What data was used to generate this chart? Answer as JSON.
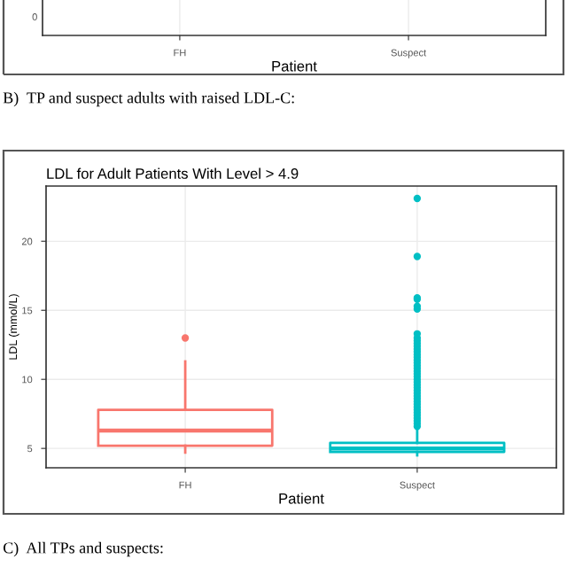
{
  "chart_data": [
    {
      "type": "other",
      "categories": [
        "FH",
        "Suspect"
      ],
      "xlabel": "Patient",
      "annotations": [
        "0",
        "B)  TP and suspect adults with raised LDL-C:"
      ]
    },
    {
      "type": "box",
      "title": "LDL for Adult Patients With Level > 4.9",
      "xlabel": "Patient",
      "ylabel": "LDL (mmol/L)",
      "categories": [
        "FH",
        "Suspect"
      ],
      "colors": [
        "#f8766d",
        "#00bfc4"
      ],
      "ylim": [
        3.6,
        24.0
      ],
      "yticks": [
        5,
        10,
        15,
        20
      ],
      "grid": true,
      "boxes": [
        {
          "low": 4.7,
          "q1": 5.2,
          "median": 6.3,
          "q3": 7.8,
          "high": 11.3,
          "outliers": [
            13.0
          ]
        },
        {
          "low": 4.5,
          "q1": 4.75,
          "median": 5.0,
          "q3": 5.4,
          "high": 6.4,
          "outliers": [
            6.6,
            6.8,
            7.0,
            7.2,
            7.4,
            7.6,
            7.8,
            8.0,
            8.2,
            8.4,
            8.6,
            8.8,
            9.0,
            9.2,
            9.4,
            9.6,
            9.8,
            10.0,
            10.2,
            10.4,
            10.6,
            10.8,
            11.0,
            11.2,
            11.4,
            11.6,
            11.8,
            12.0,
            12.2,
            12.4,
            12.6,
            12.8,
            13.0,
            13.3,
            15.1,
            15.3,
            15.8,
            15.9,
            18.9,
            23.1
          ]
        }
      ],
      "annotations": [
        "C)  All TPs and suspects:"
      ]
    }
  ]
}
